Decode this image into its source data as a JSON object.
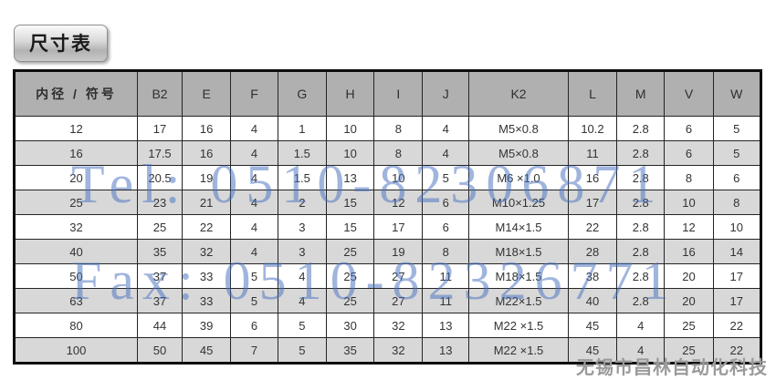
{
  "title_badge": {
    "label": "尺寸表"
  },
  "table": {
    "columns": [
      "内径 / 符号",
      "B2",
      "E",
      "F",
      "G",
      "H",
      "I",
      "J",
      "K2",
      "L",
      "M",
      "V",
      "W"
    ],
    "rows": [
      [
        "12",
        "17",
        "16",
        "4",
        "1",
        "10",
        "8",
        "4",
        "M5×0.8",
        "10.2",
        "2.8",
        "6",
        "5"
      ],
      [
        "16",
        "17.5",
        "16",
        "4",
        "1.5",
        "10",
        "8",
        "4",
        "M5×0.8",
        "11",
        "2.8",
        "6",
        "5"
      ],
      [
        "20",
        "20.5",
        "19",
        "4",
        "1.5",
        "13",
        "10",
        "5",
        "M6 ×1.0",
        "16",
        "2.8",
        "8",
        "6"
      ],
      [
        "25",
        "23",
        "21",
        "4",
        "2",
        "15",
        "12",
        "6",
        "M10×1.25",
        "17",
        "2.8",
        "10",
        "8"
      ],
      [
        "32",
        "25",
        "22",
        "4",
        "3",
        "15",
        "17",
        "6",
        "M14×1.5",
        "22",
        "2.8",
        "12",
        "10"
      ],
      [
        "40",
        "35",
        "32",
        "4",
        "3",
        "25",
        "19",
        "8",
        "M18×1.5",
        "28",
        "2.8",
        "16",
        "14"
      ],
      [
        "50",
        "37",
        "33",
        "5",
        "4",
        "25",
        "27",
        "11",
        "M18×1.5",
        "38",
        "2.8",
        "20",
        "17"
      ],
      [
        "63",
        "37",
        "33",
        "5",
        "4",
        "25",
        "27",
        "11",
        "M22×1.5",
        "40",
        "2.8",
        "20",
        "17"
      ],
      [
        "80",
        "44",
        "39",
        "6",
        "5",
        "30",
        "32",
        "13",
        "M22 ×1.5",
        "45",
        "4",
        "25",
        "22"
      ],
      [
        "100",
        "50",
        "45",
        "7",
        "5",
        "35",
        "32",
        "13",
        "M22 ×1.5",
        "45",
        "4",
        "25",
        "22"
      ]
    ]
  },
  "watermarks": {
    "tel": "Tel: 0510-82306871",
    "fax": "Fax: 0510-82326771",
    "company": "无锡市昌林自动化科技"
  },
  "colors": {
    "header_bg": "#b0b0b0",
    "row_alt_bg": "#d8d8d8",
    "watermark_blue": "#4a73c0",
    "company_gray": "#9a9a9a"
  }
}
